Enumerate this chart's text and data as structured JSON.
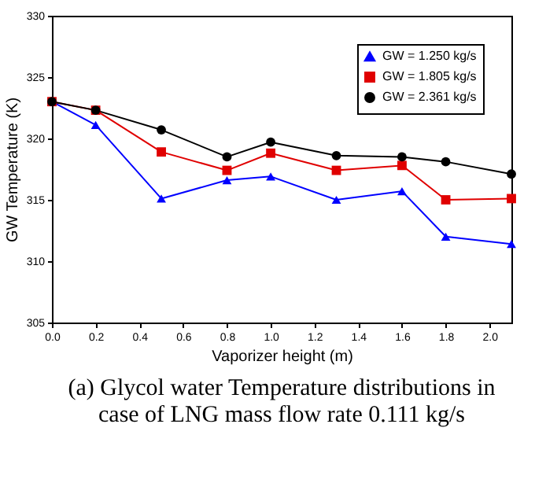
{
  "chart_data": {
    "type": "line",
    "xlabel": "Vaporizer height (m)",
    "ylabel": "GW Temperature (K)",
    "x": [
      0,
      0.2,
      0.5,
      0.8,
      1.0,
      1.3,
      1.6,
      1.8,
      2.1
    ],
    "series": [
      {
        "name": "GW = 1.250 kg/s",
        "color": "#0000ff",
        "marker": "triangle",
        "values": [
          323,
          321.1,
          315.1,
          316.6,
          316.9,
          315.0,
          315.7,
          312.0,
          311.4
        ]
      },
      {
        "name": "GW = 1.805 kg/s",
        "color": "#e00000",
        "marker": "square",
        "values": [
          323,
          322.3,
          318.9,
          317.4,
          318.8,
          317.4,
          317.8,
          315.0,
          315.1
        ]
      },
      {
        "name": "GW = 2.361 kg/s",
        "color": "#000000",
        "marker": "circle",
        "values": [
          323,
          322.3,
          320.7,
          318.5,
          319.7,
          318.6,
          318.5,
          318.1,
          317.1
        ]
      }
    ],
    "xlim": [
      0,
      2.1
    ],
    "xticks": [
      {
        "value": 0,
        "label": "0.0"
      },
      0.2,
      0.4,
      0.6,
      0.8,
      {
        "value": 1,
        "label": "1.0"
      },
      1.2,
      1.4,
      1.6,
      1.8,
      {
        "value": 2,
        "label": "2.0"
      }
    ],
    "ylim": [
      305,
      330
    ],
    "yticks": [
      305,
      310,
      315,
      320,
      325,
      330
    ],
    "grid": false,
    "legend": "top right",
    "line_style": "solid",
    "annotations": [
      "(a) Glycol water Temperature distributions in case of LNG mass flow rate 0.111 kg/s"
    ]
  }
}
